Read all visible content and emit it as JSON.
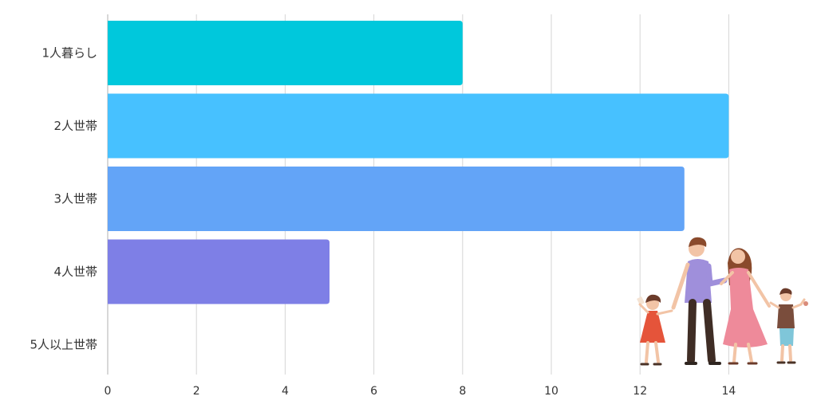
{
  "chart_data": {
    "type": "bar",
    "orientation": "horizontal",
    "categories": [
      "1人暮らし",
      "2人世帯",
      "3人世帯",
      "4人世帯",
      "5人以上世帯"
    ],
    "values": [
      8,
      14,
      13,
      5,
      0
    ],
    "bar_colors": [
      "#00c8dc",
      "#47c1ff",
      "#63a4f7",
      "#7e7fe6",
      "#9b7fe0"
    ],
    "xticks": [
      0,
      2,
      4,
      6,
      8,
      10,
      12,
      14
    ],
    "xlim": [
      0,
      15.5
    ],
    "grid": true,
    "legend": "none",
    "title": "",
    "xlabel": "",
    "ylabel": ""
  },
  "decoration": {
    "illustration": "family-holding-hands-icon"
  }
}
